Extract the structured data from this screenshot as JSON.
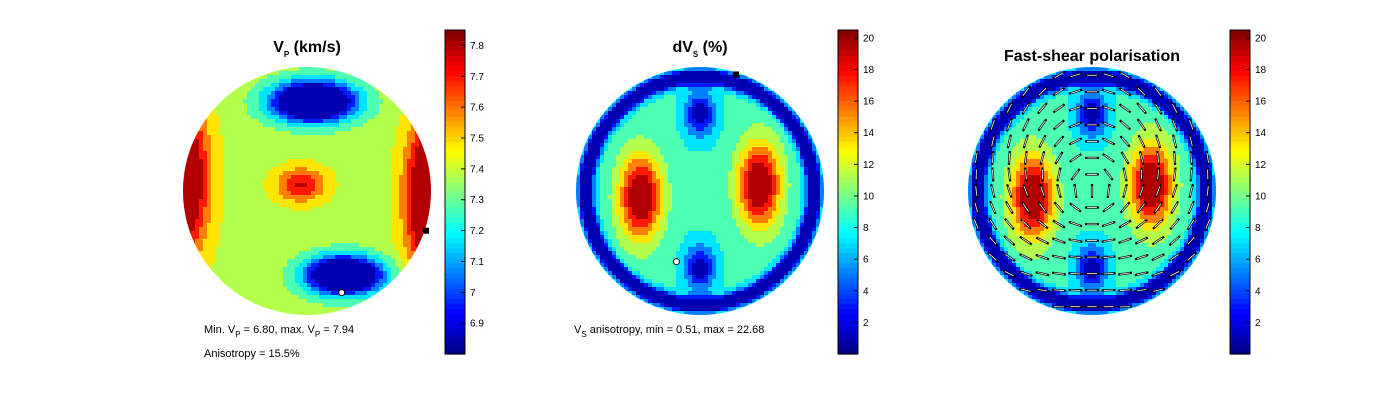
{
  "chart_data": [
    {
      "type": "heatmap",
      "title": "V",
      "title_sub": "P",
      "title_suffix": " (km/s)",
      "colormap": "jet",
      "colorbar": {
        "min": 6.8,
        "max": 7.85,
        "ticks": [
          "6.9",
          "7",
          "7.1",
          "7.2",
          "7.3",
          "7.4",
          "7.5",
          "7.6",
          "7.7",
          "7.8"
        ],
        "tick_values": [
          6.9,
          7.0,
          7.1,
          7.2,
          7.3,
          7.4,
          7.5,
          7.6,
          7.7,
          7.8
        ]
      },
      "min": 6.8,
      "max": 7.94,
      "annotation_line1": {
        "p1": "Min. V",
        "s1": "P",
        "p2": " = 6.80, max. V",
        "s2": "P",
        "p3": " = 7.94"
      },
      "annotation_line2": "Anisotropy = 15.5%",
      "min_marker": "circle",
      "max_marker": "square",
      "blobs": [
        {
          "x": 0.3,
          "y": 0.68,
          "sx": 0.3,
          "sy": 0.15,
          "a": -1.0
        },
        {
          "x": 0.05,
          "y": -0.72,
          "sx": 0.33,
          "sy": 0.16,
          "a": -1.0
        },
        {
          "x": 1.05,
          "y": 0.05,
          "sx": 0.22,
          "sy": 0.6,
          "a": 0.9
        },
        {
          "x": -1.05,
          "y": -0.1,
          "sx": 0.22,
          "sy": 0.6,
          "a": 0.8
        },
        {
          "x": -0.05,
          "y": -0.05,
          "sx": 0.2,
          "sy": 0.14,
          "a": 0.35
        }
      ],
      "base": 0.56
    },
    {
      "type": "heatmap",
      "title": "dV",
      "title_sub": "S",
      "title_suffix": " (%)",
      "colormap": "jet",
      "colorbar": {
        "min": 0.0,
        "max": 20.5,
        "ticks": [
          "2",
          "4",
          "6",
          "8",
          "10",
          "12",
          "14",
          "16",
          "18",
          "20"
        ],
        "tick_values": [
          2,
          4,
          6,
          8,
          10,
          12,
          14,
          16,
          18,
          20
        ]
      },
      "min": 0.51,
      "max": 22.68,
      "annotation_line1": {
        "p1": "V",
        "s1": "S",
        "p2": " anisotropy, min =  0.51, max = 22.68",
        "s2": "",
        "p3": ""
      },
      "annotation_line2": "",
      "min_marker": "circle",
      "max_marker": "square",
      "blobs": [
        {
          "x": -0.48,
          "y": 0.05,
          "sx": 0.17,
          "sy": 0.34,
          "a": 0.65
        },
        {
          "x": 0.48,
          "y": -0.05,
          "sx": 0.17,
          "sy": 0.34,
          "a": 0.65
        },
        {
          "x": 0.0,
          "y": 0.62,
          "sx": 0.12,
          "sy": 0.18,
          "a": -0.4
        },
        {
          "x": 0.0,
          "y": -0.62,
          "sx": 0.12,
          "sy": 0.18,
          "a": -0.4
        }
      ],
      "ring": {
        "r": 0.92,
        "w": 0.06,
        "a": -0.55
      },
      "base": 0.42
    },
    {
      "type": "heatmap",
      "title": "Fast-shear polarisation",
      "title_sub": "",
      "title_suffix": "",
      "colormap": "jet",
      "colorbar": {
        "min": 0.0,
        "max": 20.5,
        "ticks": [
          "2",
          "4",
          "6",
          "8",
          "10",
          "12",
          "14",
          "16",
          "18",
          "20"
        ],
        "tick_values": [
          2,
          4,
          6,
          8,
          10,
          12,
          14,
          16,
          18,
          20
        ]
      },
      "vectors": true,
      "blobs": [
        {
          "x": -0.48,
          "y": 0.05,
          "sx": 0.17,
          "sy": 0.34,
          "a": 0.65
        },
        {
          "x": 0.48,
          "y": -0.05,
          "sx": 0.17,
          "sy": 0.34,
          "a": 0.65
        },
        {
          "x": 0.0,
          "y": 0.62,
          "sx": 0.12,
          "sy": 0.18,
          "a": -0.4
        },
        {
          "x": 0.0,
          "y": -0.62,
          "sx": 0.12,
          "sy": 0.18,
          "a": -0.4
        }
      ],
      "ring": {
        "r": 0.92,
        "w": 0.06,
        "a": -0.55
      },
      "base": 0.42
    }
  ]
}
